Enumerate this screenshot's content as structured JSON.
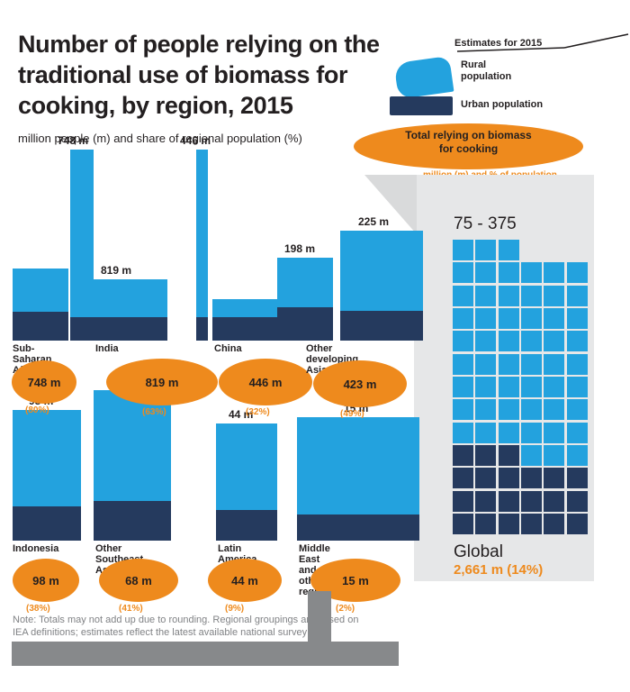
{
  "title": {
    "line1": "Number of people relying on the",
    "line2": "traditional use of biomass for",
    "line3": "cooking, by region, 2015",
    "subtitle": "million people (m) and share of regional population (%)"
  },
  "legend": {
    "note": "Estimates for 2015",
    "blue_label_line1": "Rural",
    "blue_label_line2": "population",
    "navy_label": "Urban population",
    "oval_label_line1": "Total relying on biomass",
    "oval_label_line2": "for cooking",
    "oval_caption": "million (m) and % of population"
  },
  "panel": {
    "range_label": "75 - 375",
    "global_label": "Global",
    "global_value": "2,661 m (14%)"
  },
  "footer": {
    "note_line1": "Note: Totals may not add up due to rounding. Regional groupings are based on",
    "note_line2": "IEA definitions; estimates reflect the latest available national survey data."
  },
  "colors": {
    "blue": "#23a2de",
    "navy": "#253a5e",
    "orange": "#ee8a1d",
    "panel_gray": "#e6e7e8",
    "dark": "#231f20",
    "footer_gray": "#87898b"
  },
  "chart_data": {
    "type": "bar",
    "title": "Number of people relying on the traditional use of biomass for cooking, by region, 2015",
    "ylabel": "million people",
    "legend_position": "top-right",
    "grid": false,
    "series_names": [
      "Rural population (blue)",
      "Urban population (navy)",
      "Total (orange oval)"
    ],
    "groups": [
      {
        "id": "a1",
        "label_lines": [
          "Sub-Saharan",
          "Africa"
        ],
        "total_value": "748 m",
        "total_pct": "(80%)"
      },
      {
        "id": "a2",
        "label_lines": [
          "India"
        ],
        "total_value": "819 m",
        "total_pct": "(63%)"
      },
      {
        "id": "a3",
        "label_lines": [
          "China"
        ],
        "total_value": "446 m",
        "total_pct": "(32%)"
      },
      {
        "id": "a4",
        "label_lines": [
          "Other developing Asia"
        ],
        "total_value": "423 m",
        "total_pct": "(49%)"
      },
      {
        "id": "b1",
        "label_lines": [
          "Indonesia"
        ],
        "total_value": "98 m",
        "total_pct": "(38%)"
      },
      {
        "id": "b2",
        "label_lines": [
          "Other Southeast",
          "Asia"
        ],
        "total_value": "68 m",
        "total_pct": "(41%)"
      },
      {
        "id": "b3",
        "label_lines": [
          "Latin America"
        ],
        "total_value": "44 m",
        "total_pct": "(9%)"
      },
      {
        "id": "b4",
        "label_lines": [
          "Middle East and",
          "other regions"
        ],
        "total_value": "15 m",
        "total_pct": "(2%)"
      }
    ],
    "bar_value_labels": {
      "a1t": "748 m",
      "a2": "819 m",
      "a3t": "446 m",
      "a4a": "198 m",
      "a4b": "225 m",
      "b1": "98 m",
      "b2": "68 m",
      "b3": "44 m",
      "b4": "15 m"
    },
    "global": {
      "label": "Global",
      "value_text": "2,661 m (14%)"
    },
    "waffle": {
      "range_label": "75 - 375",
      "total_squares": 75,
      "blue_squares": 54,
      "navy_squares": 21,
      "rows": [
        "BBB",
        "BBBBBB",
        "BBBBBB",
        "BBBBBB",
        "BBBBBB",
        "BBBBBB",
        "BBBBBB",
        "BBBBBB",
        "BBBBBB",
        "NNNBBB",
        "NNNNNN",
        "NNNNNN",
        "NNNNNN"
      ]
    }
  }
}
